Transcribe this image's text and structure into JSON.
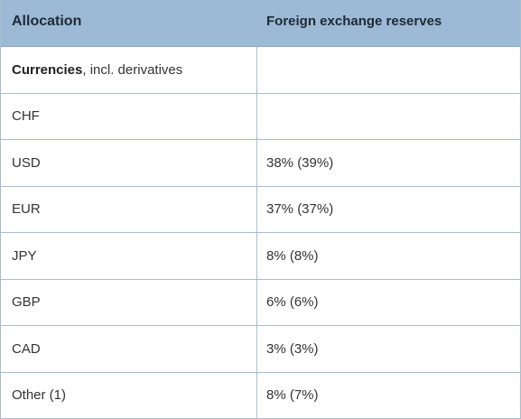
{
  "table": {
    "headers": [
      "Allocation",
      "Foreign exchange reserves"
    ],
    "group_row": {
      "bold": "Currencies",
      "rest": ", incl. derivatives",
      "value": ""
    },
    "rows": [
      {
        "label": "CHF",
        "value": ""
      },
      {
        "label": "USD",
        "value": "38% (39%)"
      },
      {
        "label": "EUR",
        "value": "37% (37%)"
      },
      {
        "label": "JPY",
        "value": "8% (8%)"
      },
      {
        "label": "GBP",
        "value": "6% (6%)"
      },
      {
        "label": "CAD",
        "value": "3% (3%)"
      },
      {
        "label": "Other (1)",
        "value": "8% (7%)"
      }
    ]
  }
}
